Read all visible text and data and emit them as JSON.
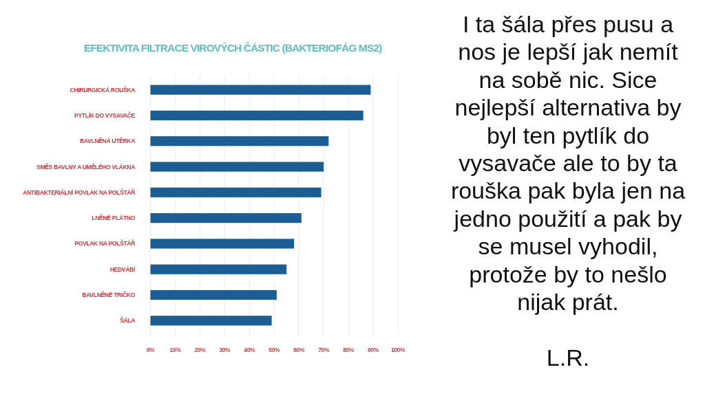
{
  "chart_data": [
    {
      "type": "bar",
      "orientation": "horizontal",
      "title": "EFEKTIVITA FILTRACE VIROVÝCH ČÁSTIC (BAKTERIOFÁG MS2)",
      "categories": [
        "CHIRURGICKÁ ROUŠKA",
        "PYTLÍK DO VYSAVAČE",
        "BAVLNĚNÁ UTĚRKA",
        "SMĚS BAVLNY A UMĚLÉHO VLÁKNA",
        "ANTIBAKTERIÁLNÍ POVLAK NA POLŠTÁŘ",
        "LNĚNÉ PLÁTNO",
        "POVLAK NA POLŠTÁŘ",
        "HEDVÁBÍ",
        "BAVLNĚNÉ TRIČKO",
        "ŠÁLA"
      ],
      "values": [
        89,
        86,
        72,
        70,
        69,
        61,
        58,
        55,
        51,
        49
      ],
      "color": "#1b5e93",
      "xlim": [
        0,
        100
      ],
      "xticks": [
        {
          "value": 0,
          "label": "0%"
        },
        {
          "value": 10,
          "label": "10%"
        },
        {
          "value": 20,
          "label": "20%"
        },
        {
          "value": 30,
          "label": "30%"
        },
        {
          "value": 40,
          "label": "40%"
        },
        {
          "value": 50,
          "label": "50%"
        },
        {
          "value": 60,
          "label": "60%"
        },
        {
          "value": 70,
          "label": "70%"
        },
        {
          "value": 80,
          "label": "80%"
        },
        {
          "value": 90,
          "label": "90%"
        },
        {
          "value": 100,
          "label": "100%"
        }
      ],
      "grid": "x"
    },
    {
      "type": "other",
      "annotations": [
        "I ta šála přes pusu a\nnos je lepší jak nemít\nna sobě nic. Sice\nnejlepší alternativa by\nbyl ten pytlík do\nvysavače ale to by ta\nrouška pak byla jen na\njedno použití a pak by\nse musel vyhodil,\nprotože by to nešlo\nnijak prát.",
        "L.R."
      ]
    }
  ]
}
